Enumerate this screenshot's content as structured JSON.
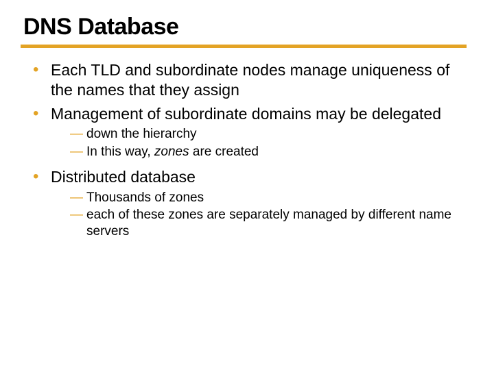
{
  "colors": {
    "accent": "#e3a325",
    "text": "#000000",
    "background": "#ffffff"
  },
  "title": "DNS Database",
  "bullets": [
    {
      "text": "Each TLD and subordinate nodes manage uniqueness of the names that they assign",
      "subs": []
    },
    {
      "text": "Management of subordinate domains may be delegated",
      "subs": [
        {
          "text": "down the hierarchy"
        },
        {
          "prefix": "In this way, ",
          "italic": "zones",
          "suffix": " are created"
        }
      ]
    },
    {
      "text": "Distributed database",
      "subs": [
        {
          "text": "Thousands of zones"
        },
        {
          "text": "each of these zones are separately managed by different name servers"
        }
      ]
    }
  ]
}
